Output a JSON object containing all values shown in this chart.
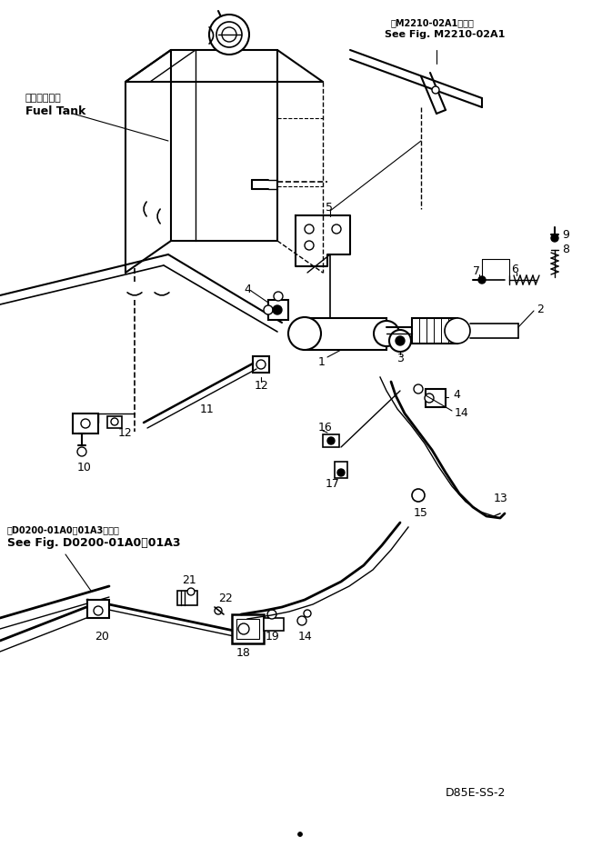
{
  "bg_color": "#ffffff",
  "line_color": "#000000",
  "fig_width": 6.62,
  "fig_height": 9.32,
  "dpi": 100,
  "title_ref1_jp": "第M2210-02A1図参照",
  "title_ref1_en": "See Fig. M2210-02A1",
  "title_ref2_jp": "第D0200-01A0～01A3図参照",
  "title_ref2_en": "See Fig. D0200-01A0～01A3",
  "label_fuel_tank_jp": "フェルタンク",
  "label_fuel_tank_en": "Fuel Tank",
  "model_code": "D85E-SS-2"
}
